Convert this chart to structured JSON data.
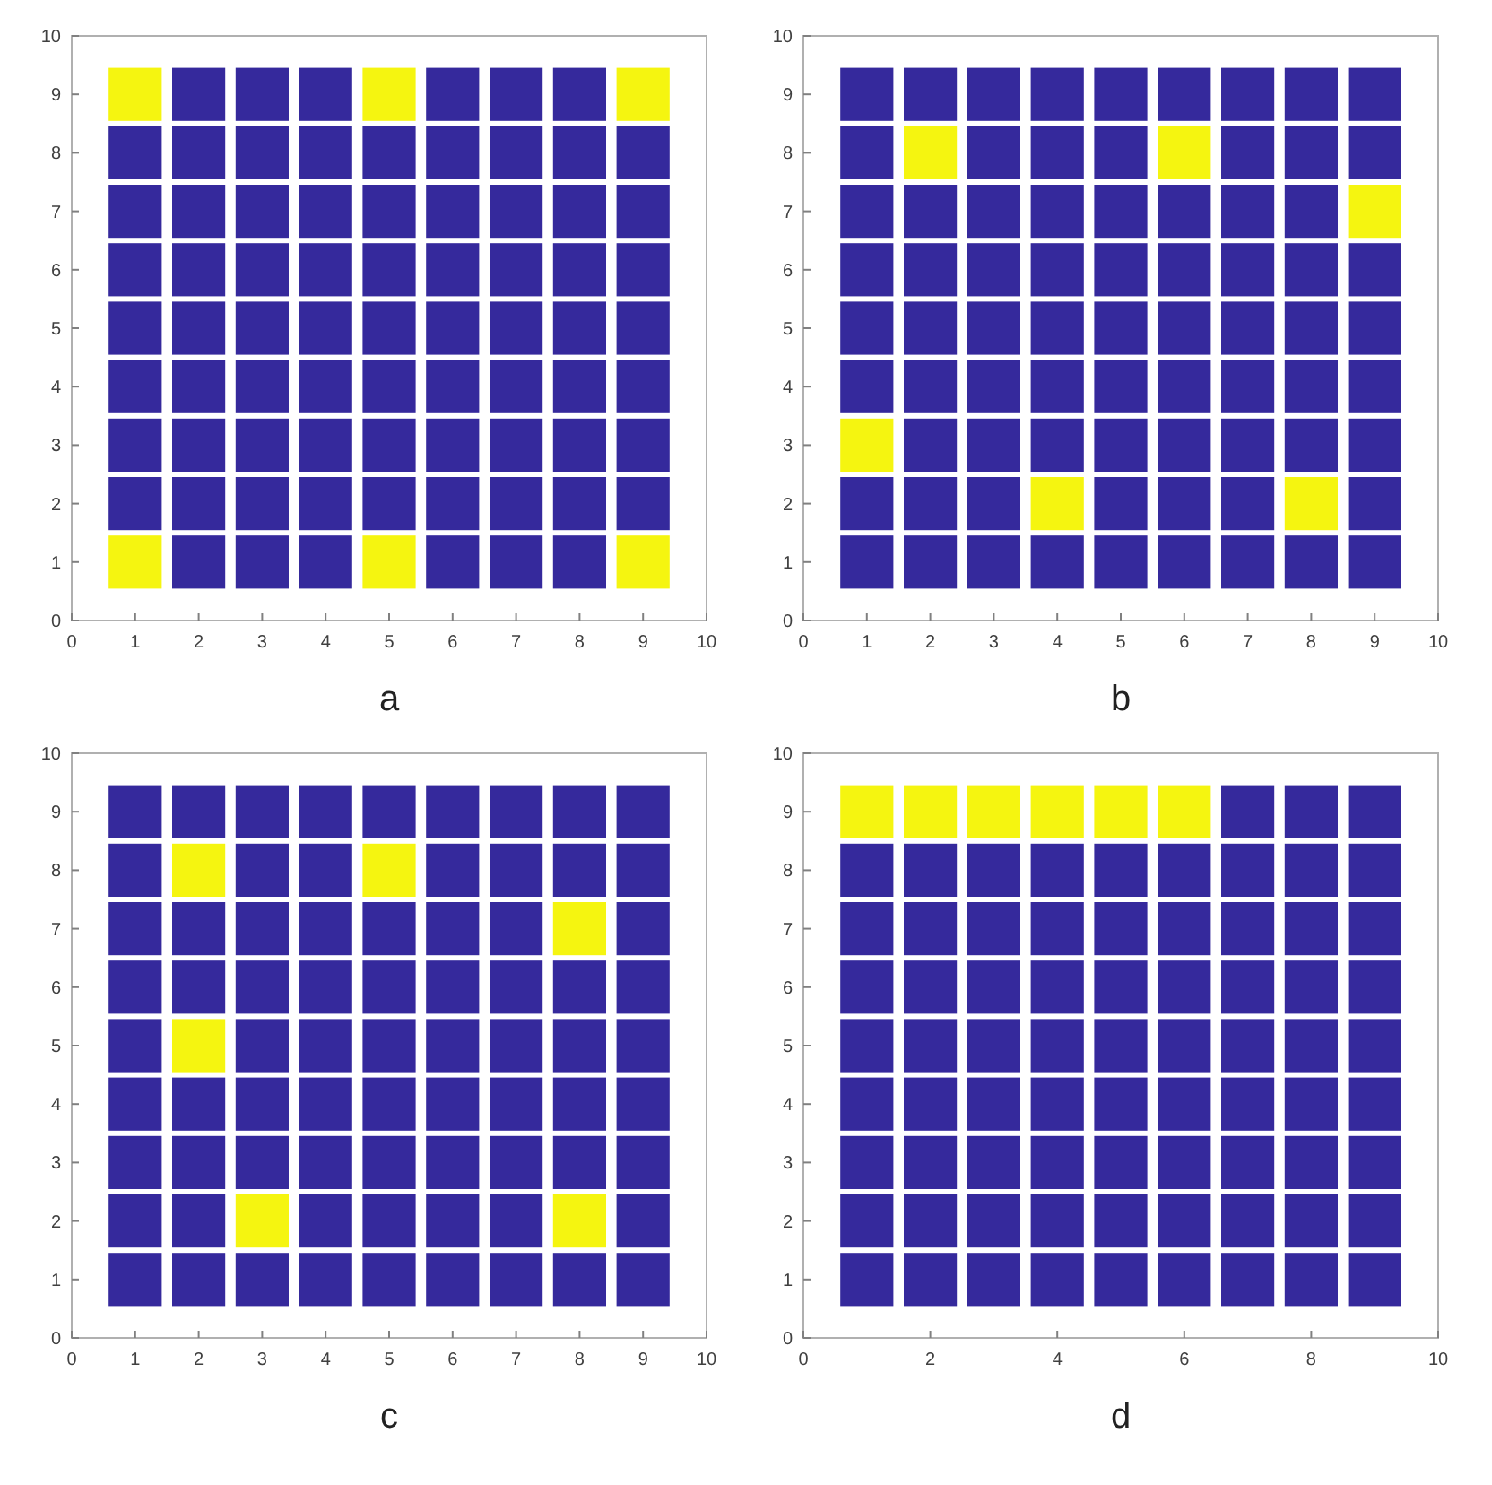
{
  "chart_data": [
    {
      "type": "scatter",
      "marker": "square",
      "annotations": [
        "a"
      ],
      "xlim": [
        0,
        10
      ],
      "ylim": [
        0,
        10
      ],
      "xticks": [
        0,
        1,
        2,
        3,
        4,
        5,
        6,
        7,
        8,
        9,
        10
      ],
      "yticks": [
        0,
        1,
        2,
        3,
        4,
        5,
        6,
        7,
        8,
        9,
        10
      ],
      "series": [
        {
          "color": "#35299c",
          "x": [
            1,
            1,
            1,
            1,
            1,
            1,
            1,
            2,
            2,
            2,
            2,
            2,
            2,
            2,
            2,
            2,
            3,
            3,
            3,
            3,
            3,
            3,
            3,
            3,
            3,
            4,
            4,
            4,
            4,
            4,
            4,
            4,
            4,
            4,
            5,
            5,
            5,
            5,
            5,
            5,
            5,
            6,
            6,
            6,
            6,
            6,
            6,
            6,
            6,
            6,
            7,
            7,
            7,
            7,
            7,
            7,
            7,
            7,
            7,
            8,
            8,
            8,
            8,
            8,
            8,
            8,
            8,
            8,
            9,
            9,
            9,
            9,
            9,
            9,
            9
          ],
          "values": [
            8,
            7,
            6,
            5,
            4,
            3,
            2,
            9,
            8,
            7,
            6,
            5,
            4,
            3,
            2,
            1,
            9,
            8,
            7,
            6,
            5,
            4,
            3,
            2,
            1,
            9,
            8,
            7,
            6,
            5,
            4,
            3,
            2,
            1,
            8,
            7,
            6,
            5,
            4,
            3,
            2,
            9,
            8,
            7,
            6,
            5,
            4,
            3,
            2,
            1,
            9,
            8,
            7,
            6,
            5,
            4,
            3,
            2,
            1,
            9,
            8,
            7,
            6,
            5,
            4,
            3,
            2,
            1,
            8,
            7,
            6,
            5,
            4,
            3,
            2
          ]
        },
        {
          "color": "#f5f510",
          "x": [
            1,
            5,
            9,
            1,
            5,
            9
          ],
          "values": [
            9,
            9,
            9,
            1,
            1,
            1
          ]
        }
      ]
    },
    {
      "type": "scatter",
      "marker": "square",
      "annotations": [
        "b"
      ],
      "xlim": [
        0,
        10
      ],
      "ylim": [
        0,
        10
      ],
      "xticks": [
        0,
        1,
        2,
        3,
        4,
        5,
        6,
        7,
        8,
        9,
        10
      ],
      "yticks": [
        0,
        1,
        2,
        3,
        4,
        5,
        6,
        7,
        8,
        9,
        10
      ],
      "series": [
        {
          "color": "#35299c",
          "x": [
            1,
            1,
            1,
            1,
            1,
            1,
            1,
            1,
            2,
            2,
            2,
            2,
            2,
            2,
            2,
            2,
            3,
            3,
            3,
            3,
            3,
            3,
            3,
            3,
            3,
            4,
            4,
            4,
            4,
            4,
            4,
            4,
            4,
            5,
            5,
            5,
            5,
            5,
            5,
            5,
            5,
            5,
            6,
            6,
            6,
            6,
            6,
            6,
            6,
            6,
            7,
            7,
            7,
            7,
            7,
            7,
            7,
            7,
            7,
            8,
            8,
            8,
            8,
            8,
            8,
            8,
            8,
            9,
            9,
            9,
            9,
            9,
            9,
            9,
            9
          ],
          "values": [
            9,
            8,
            7,
            6,
            5,
            4,
            2,
            1,
            9,
            7,
            6,
            5,
            4,
            3,
            2,
            1,
            9,
            8,
            7,
            6,
            5,
            4,
            3,
            2,
            1,
            9,
            8,
            7,
            6,
            5,
            4,
            3,
            1,
            9,
            8,
            7,
            6,
            5,
            4,
            3,
            2,
            1,
            9,
            7,
            6,
            5,
            4,
            3,
            2,
            1,
            9,
            8,
            7,
            6,
            5,
            4,
            3,
            2,
            1,
            9,
            8,
            7,
            6,
            5,
            4,
            3,
            1,
            9,
            8,
            6,
            5,
            4,
            3,
            2,
            1
          ]
        },
        {
          "color": "#f5f510",
          "x": [
            2,
            6,
            9,
            1,
            4,
            8
          ],
          "values": [
            8,
            8,
            7,
            3,
            2,
            2
          ]
        }
      ]
    },
    {
      "type": "scatter",
      "marker": "square",
      "annotations": [
        "c"
      ],
      "xlim": [
        0,
        10
      ],
      "ylim": [
        0,
        10
      ],
      "xticks": [
        0,
        1,
        2,
        3,
        4,
        5,
        6,
        7,
        8,
        9,
        10
      ],
      "yticks": [
        0,
        1,
        2,
        3,
        4,
        5,
        6,
        7,
        8,
        9,
        10
      ],
      "series": [
        {
          "color": "#35299c",
          "x": [
            1,
            1,
            1,
            1,
            1,
            1,
            1,
            1,
            1,
            2,
            2,
            2,
            2,
            2,
            2,
            2,
            3,
            3,
            3,
            3,
            3,
            3,
            3,
            3,
            4,
            4,
            4,
            4,
            4,
            4,
            4,
            4,
            4,
            5,
            5,
            5,
            5,
            5,
            5,
            5,
            5,
            6,
            6,
            6,
            6,
            6,
            6,
            6,
            6,
            6,
            7,
            7,
            7,
            7,
            7,
            7,
            7,
            7,
            7,
            8,
            8,
            8,
            8,
            8,
            8,
            8,
            9,
            9,
            9,
            9,
            9,
            9,
            9,
            9,
            9
          ],
          "values": [
            9,
            8,
            7,
            6,
            5,
            4,
            3,
            2,
            1,
            9,
            7,
            6,
            4,
            3,
            2,
            1,
            9,
            8,
            7,
            6,
            5,
            4,
            3,
            1,
            9,
            8,
            7,
            6,
            5,
            4,
            3,
            2,
            1,
            9,
            7,
            6,
            5,
            4,
            3,
            2,
            1,
            9,
            8,
            7,
            6,
            5,
            4,
            3,
            2,
            1,
            9,
            8,
            7,
            6,
            5,
            4,
            3,
            2,
            1,
            9,
            8,
            6,
            5,
            4,
            3,
            1,
            9,
            8,
            7,
            6,
            5,
            4,
            3,
            2,
            1
          ]
        },
        {
          "color": "#f5f510",
          "x": [
            2,
            5,
            8,
            2,
            3,
            8
          ],
          "values": [
            8,
            8,
            7,
            5,
            2,
            2
          ]
        }
      ]
    },
    {
      "type": "scatter",
      "marker": "square",
      "annotations": [
        "d"
      ],
      "xlim": [
        0,
        10
      ],
      "ylim": [
        0,
        10
      ],
      "xticks": [
        0,
        2,
        4,
        6,
        8,
        10
      ],
      "yticks": [
        0,
        1,
        2,
        3,
        4,
        5,
        6,
        7,
        8,
        9,
        10
      ],
      "series": [
        {
          "color": "#35299c",
          "x": [
            1,
            1,
            1,
            1,
            1,
            1,
            1,
            1,
            2,
            2,
            2,
            2,
            2,
            2,
            2,
            2,
            3,
            3,
            3,
            3,
            3,
            3,
            3,
            3,
            4,
            4,
            4,
            4,
            4,
            4,
            4,
            4,
            5,
            5,
            5,
            5,
            5,
            5,
            5,
            5,
            6,
            6,
            6,
            6,
            6,
            6,
            6,
            6,
            7,
            7,
            7,
            7,
            7,
            7,
            7,
            7,
            7,
            8,
            8,
            8,
            8,
            8,
            8,
            8,
            8,
            8,
            9,
            9,
            9,
            9,
            9,
            9,
            9,
            9,
            9
          ],
          "values": [
            8,
            7,
            6,
            5,
            4,
            3,
            2,
            1,
            8,
            7,
            6,
            5,
            4,
            3,
            2,
            1,
            8,
            7,
            6,
            5,
            4,
            3,
            2,
            1,
            8,
            7,
            6,
            5,
            4,
            3,
            2,
            1,
            8,
            7,
            6,
            5,
            4,
            3,
            2,
            1,
            8,
            7,
            6,
            5,
            4,
            3,
            2,
            1,
            9,
            8,
            7,
            6,
            5,
            4,
            3,
            2,
            1,
            9,
            8,
            7,
            6,
            5,
            4,
            3,
            2,
            1,
            9,
            8,
            7,
            6,
            5,
            4,
            3,
            2,
            1
          ]
        },
        {
          "color": "#f5f510",
          "x": [
            1,
            2,
            3,
            4,
            5,
            6
          ],
          "values": [
            9,
            9,
            9,
            9,
            9,
            9
          ]
        }
      ]
    }
  ]
}
